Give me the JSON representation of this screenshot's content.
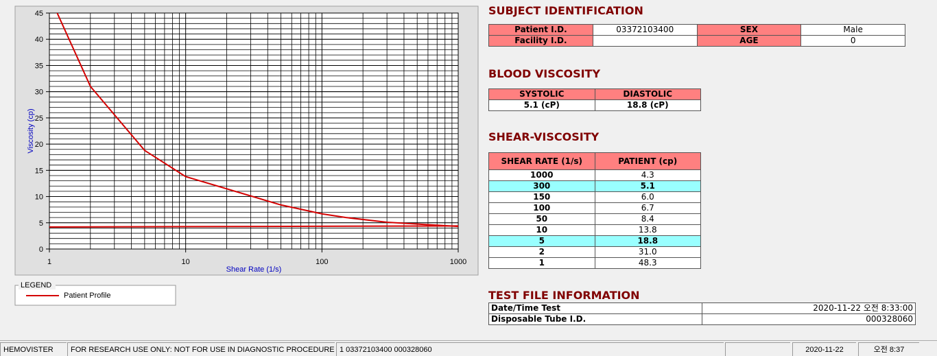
{
  "chart_data": {
    "type": "line",
    "x_label": "Shear Rate (1/s)",
    "y_label": "Viscosity (cp)",
    "log_x": true,
    "xlim": [
      1,
      1000
    ],
    "xticks": [
      1,
      10,
      100,
      1000
    ],
    "ylim": [
      0,
      45
    ],
    "yticks": [
      0,
      5,
      10,
      15,
      20,
      25,
      30,
      35,
      40,
      45
    ],
    "grid": true,
    "legend_title": "LEGEND",
    "series": [
      {
        "name": "Patient Profile",
        "color": "#d40000",
        "x": [
          1,
          2,
          5,
          10,
          50,
          100,
          150,
          300,
          1000
        ],
        "values": [
          48.3,
          31.0,
          18.8,
          13.8,
          8.4,
          6.7,
          6.0,
          5.1,
          4.3
        ]
      },
      {
        "color": "#d40000",
        "x": [
          1,
          1000
        ],
        "values": [
          4.2,
          4.4
        ]
      }
    ]
  },
  "subject": {
    "title": "SUBJECT IDENTIFICATION",
    "rows": [
      [
        "Patient I.D.",
        "03372103400",
        "SEX",
        "Male"
      ],
      [
        "Facility I.D.",
        null,
        "AGE",
        "0"
      ]
    ]
  },
  "blood": {
    "title": "BLOOD VISCOSITY",
    "headers": [
      "SYSTOLIC",
      "DIASTOLIC"
    ],
    "values": [
      "5.1 (cP)",
      "18.8 (cP)"
    ]
  },
  "shear": {
    "title": "SHEAR-VISCOSITY",
    "headers": [
      "SHEAR RATE (1/s)",
      "PATIENT (cp)"
    ],
    "rows": [
      {
        "cells": [
          "1000",
          "4.3"
        ],
        "highlight": false
      },
      {
        "cells": [
          "300",
          "5.1"
        ],
        "highlight": true
      },
      {
        "cells": [
          "150",
          "6.0"
        ],
        "highlight": false
      },
      {
        "cells": [
          "100",
          "6.7"
        ],
        "highlight": false
      },
      {
        "cells": [
          "50",
          "8.4"
        ],
        "highlight": false
      },
      {
        "cells": [
          "10",
          "13.8"
        ],
        "highlight": false
      },
      {
        "cells": [
          "5",
          "18.8"
        ],
        "highlight": true
      },
      {
        "cells": [
          "2",
          "31.0"
        ],
        "highlight": false
      },
      {
        "cells": [
          "1",
          "48.3"
        ],
        "highlight": false
      }
    ]
  },
  "test_file": {
    "title": "TEST FILE INFORMATION",
    "rows": [
      [
        "Date/Time Test",
        "2020-11-22   오전 8:33:00"
      ],
      [
        "Disposable Tube I.D.",
        "000328060"
      ]
    ]
  },
  "status_bar": [
    "HEMOVISTER",
    "FOR RESEARCH USE ONLY: NOT FOR USE IN DIAGNOSTIC PROCEDURES",
    "1  03372103400  000328060",
    null,
    "2020-11-22",
    "오전 8:37"
  ]
}
